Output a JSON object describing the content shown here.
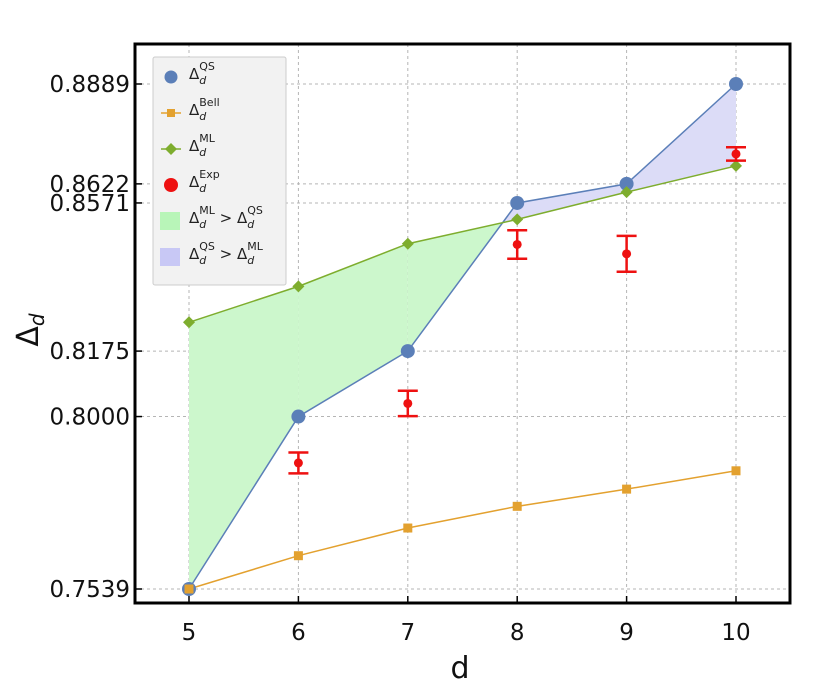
{
  "chart_data": {
    "type": "line",
    "xlabel": "d",
    "ylabel": "Δ",
    "ylabel_sub": "d",
    "x": [
      5,
      6,
      7,
      8,
      9,
      10
    ],
    "x_ticks": [
      "5",
      "6",
      "7",
      "8",
      "9",
      "10"
    ],
    "xlim": [
      4.5,
      10.5
    ],
    "y_ticks": [
      0.7539,
      0.8,
      0.8175,
      0.8571,
      0.8622,
      0.8889
    ],
    "y_tick_labels": [
      "0.7539",
      "0.8000",
      "0.8175",
      "0.8571",
      "0.8622",
      "0.8889"
    ],
    "ylim": [
      0.7505,
      0.9
    ],
    "grid": true,
    "legend_position": "top-left",
    "series": [
      {
        "key": "QS",
        "name": "Δ",
        "sub": "d",
        "sup": "QS",
        "color": "#5b7fb8",
        "marker": "circle",
        "values": [
          0.7539,
          0.8,
          0.8175,
          0.8571,
          0.8622,
          0.8889
        ]
      },
      {
        "key": "Bell",
        "name": "Δ",
        "sub": "d",
        "sup": "Bell",
        "color": "#e3a12f",
        "marker": "square",
        "values": [
          0.7539,
          0.7628,
          0.7702,
          0.776,
          0.7806,
          0.7855
        ]
      },
      {
        "key": "ML",
        "name": "Δ",
        "sub": "d",
        "sup": "ML",
        "color": "#7ead2e",
        "marker": "diamond",
        "values": [
          0.8252,
          0.8348,
          0.8462,
          0.8527,
          0.86,
          0.867
        ]
      },
      {
        "key": "Exp",
        "name": "Δ",
        "sub": "d",
        "sup": "Exp",
        "color": "#ee1111",
        "marker": "errorbar",
        "x": [
          6,
          7,
          8,
          9,
          10
        ],
        "values": [
          0.7876,
          0.8035,
          0.846,
          0.8435,
          0.8702
        ],
        "errors": [
          0.0028,
          0.0034,
          0.0038,
          0.0048,
          0.0018
        ]
      }
    ],
    "fills": [
      {
        "name": "Δ",
        "sub": "d",
        "sup_a": "ML",
        "op": ">",
        "sup_b": "QS",
        "color": "#ccf7cc",
        "legend_color": "#b8f5b8"
      },
      {
        "name": "Δ",
        "sub": "d",
        "sup_a": "QS",
        "op": ">",
        "sup_b": "ML",
        "color": "#dcdcf7",
        "legend_color": "#c8c8f5"
      }
    ]
  }
}
